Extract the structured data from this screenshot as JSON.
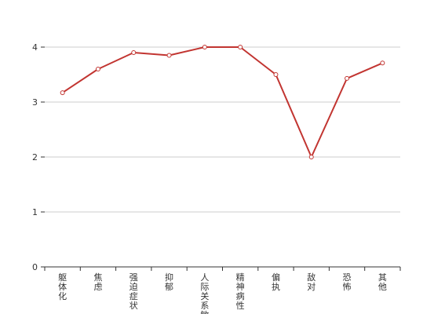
{
  "chart_data": {
    "type": "line",
    "categories": [
      "躯体化",
      "焦虑",
      "强迫症状",
      "抑郁",
      "人际关系敏感",
      "精神病性",
      "偏执",
      "敌对",
      "恐怖",
      "其他"
    ],
    "series": [
      {
        "values": [
          3.17,
          3.6,
          3.9,
          3.85,
          4.0,
          4.0,
          3.5,
          2.0,
          3.43,
          3.71
        ]
      }
    ],
    "y_ticks": [
      "0",
      "1",
      "2",
      "3",
      "4"
    ],
    "ylim": [
      0,
      4
    ],
    "grid": true,
    "colors": {
      "line": "#c23531",
      "grid": "#cccccc",
      "axis": "#333333"
    }
  }
}
